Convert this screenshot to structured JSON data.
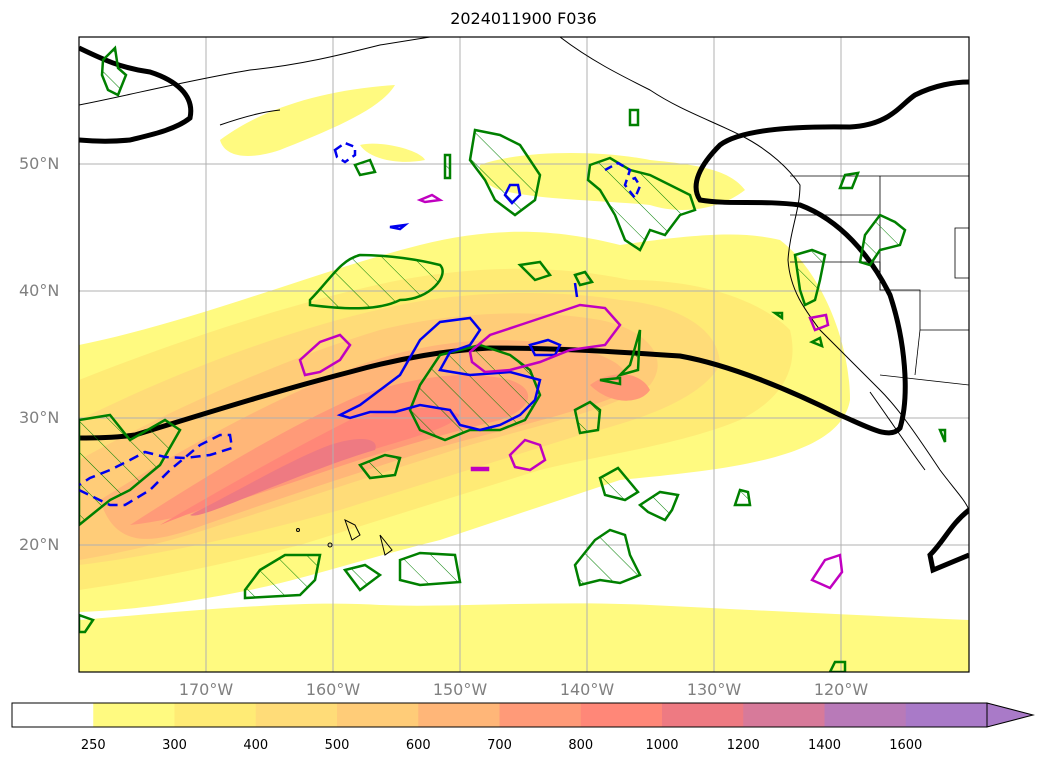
{
  "title": "2024011900 F036",
  "lat_labels": [
    "50°N",
    "40°N",
    "30°N",
    "20°N"
  ],
  "lon_labels": [
    "170°W",
    "160°W",
    "150°W",
    "140°W",
    "130°W",
    "120°W"
  ],
  "colorbar": {
    "ticks": [
      "250",
      "300",
      "400",
      "500",
      "600",
      "700",
      "800",
      "1000",
      "1200",
      "1400",
      "1600"
    ],
    "colors": [
      "#ffffff",
      "#fffa80",
      "#ffeb75",
      "#ffdc78",
      "#ffcc78",
      "#ffb678",
      "#ff9a78",
      "#ff8778",
      "#ee7a82",
      "#d77a9a",
      "#b87ab8",
      "#a97ac8"
    ],
    "extend": "max"
  },
  "map": {
    "lat_range": [
      10,
      60
    ],
    "lon_range": [
      -180,
      -110
    ],
    "grid": true,
    "contour_colors": {
      "main_contour": "#000000",
      "green_hatched": "#008000",
      "blue": "#0000ee",
      "magenta": "#c000c0"
    }
  }
}
